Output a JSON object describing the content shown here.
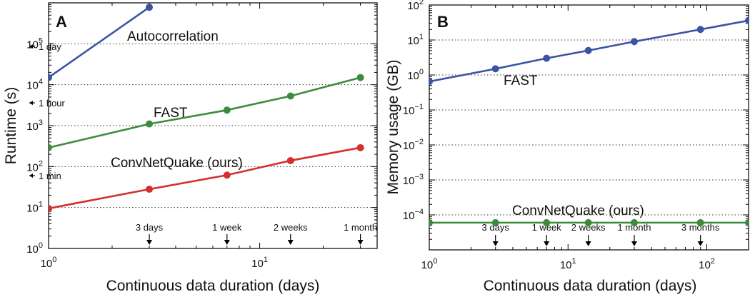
{
  "chart_data": [
    {
      "panel_label": "A",
      "type": "line",
      "xlabel": "Continuous data duration (days)",
      "ylabel": "Runtime (s)",
      "xscale": "log",
      "yscale": "log",
      "xlim": [
        1,
        36
      ],
      "ylim": [
        1,
        1000000
      ],
      "grid": "horizontal dotted",
      "x_ticks": [
        {
          "value": 1,
          "base": "10",
          "exp": "0"
        },
        {
          "value": 10,
          "base": "10",
          "exp": "1"
        }
      ],
      "y_ticks": [
        {
          "value": 1,
          "base": "10",
          "exp": "0"
        },
        {
          "value": 10,
          "base": "10",
          "exp": "1"
        },
        {
          "value": 100,
          "base": "10",
          "exp": "2"
        },
        {
          "value": 1000,
          "base": "10",
          "exp": "3"
        },
        {
          "value": 10000,
          "base": "10",
          "exp": "4"
        },
        {
          "value": 100000,
          "base": "10",
          "exp": "5"
        }
      ],
      "series": [
        {
          "name": "Autocorrelation",
          "color": "#3a53a4",
          "x": [
            1,
            3
          ],
          "y": [
            15000,
            780000
          ]
        },
        {
          "name": "FAST",
          "color": "#3d8b3d",
          "x": [
            1,
            3,
            7,
            14,
            30
          ],
          "y": [
            290,
            1100,
            2400,
            5300,
            15000
          ]
        },
        {
          "name": "ConvNetQuake (ours)",
          "color": "#d32f2f",
          "x": [
            1,
            3,
            7,
            14,
            30
          ],
          "y": [
            9.5,
            28,
            62,
            140,
            290
          ]
        }
      ],
      "y_markers": [
        {
          "label": "1 day",
          "value": 86400
        },
        {
          "label": "1 hour",
          "value": 3600
        },
        {
          "label": "1 min",
          "value": 60
        }
      ],
      "x_markers": [
        {
          "label": "3 days",
          "value": 3
        },
        {
          "label": "1 week",
          "value": 7
        },
        {
          "label": "2 weeks",
          "value": 14
        },
        {
          "label": "1 month",
          "value": 30
        }
      ]
    },
    {
      "panel_label": "B",
      "type": "line",
      "xlabel": "Continuous data duration (days)",
      "ylabel": "Memory usage (GB)",
      "xscale": "log",
      "yscale": "log",
      "xlim": [
        1,
        200
      ],
      "ylim": [
        1e-05,
        100
      ],
      "grid": "horizontal dotted",
      "x_ticks": [
        {
          "value": 1,
          "base": "10",
          "exp": "0"
        },
        {
          "value": 10,
          "base": "10",
          "exp": "1"
        },
        {
          "value": 100,
          "base": "10",
          "exp": "2"
        }
      ],
      "y_ticks": [
        {
          "value": 0.0001,
          "base": "10",
          "exp": "−4"
        },
        {
          "value": 0.001,
          "base": "10",
          "exp": "−3"
        },
        {
          "value": 0.01,
          "base": "10",
          "exp": "−2"
        },
        {
          "value": 0.1,
          "base": "10",
          "exp": "−1"
        },
        {
          "value": 1,
          "base": "10",
          "exp": "0"
        },
        {
          "value": 10,
          "base": "10",
          "exp": "1"
        },
        {
          "value": 100,
          "base": "10",
          "exp": "2"
        }
      ],
      "series": [
        {
          "name": "FAST",
          "color": "#3a53a4",
          "x": [
            1,
            3,
            7,
            14,
            30,
            90,
            200
          ],
          "y": [
            0.65,
            1.5,
            3,
            5,
            9,
            20,
            36
          ]
        },
        {
          "name": "ConvNetQuake (ours)",
          "color": "#3d8b3d",
          "x": [
            1,
            3,
            7,
            14,
            30,
            90,
            200
          ],
          "y": [
            6e-05,
            6e-05,
            6e-05,
            6e-05,
            6e-05,
            6e-05,
            6e-05
          ]
        }
      ],
      "x_markers": [
        {
          "label": "3 days",
          "value": 3
        },
        {
          "label": "1 week",
          "value": 7
        },
        {
          "label": "2 weeks",
          "value": 14
        },
        {
          "label": "1 month",
          "value": 30
        },
        {
          "label": "3 months",
          "value": 90
        }
      ]
    }
  ]
}
